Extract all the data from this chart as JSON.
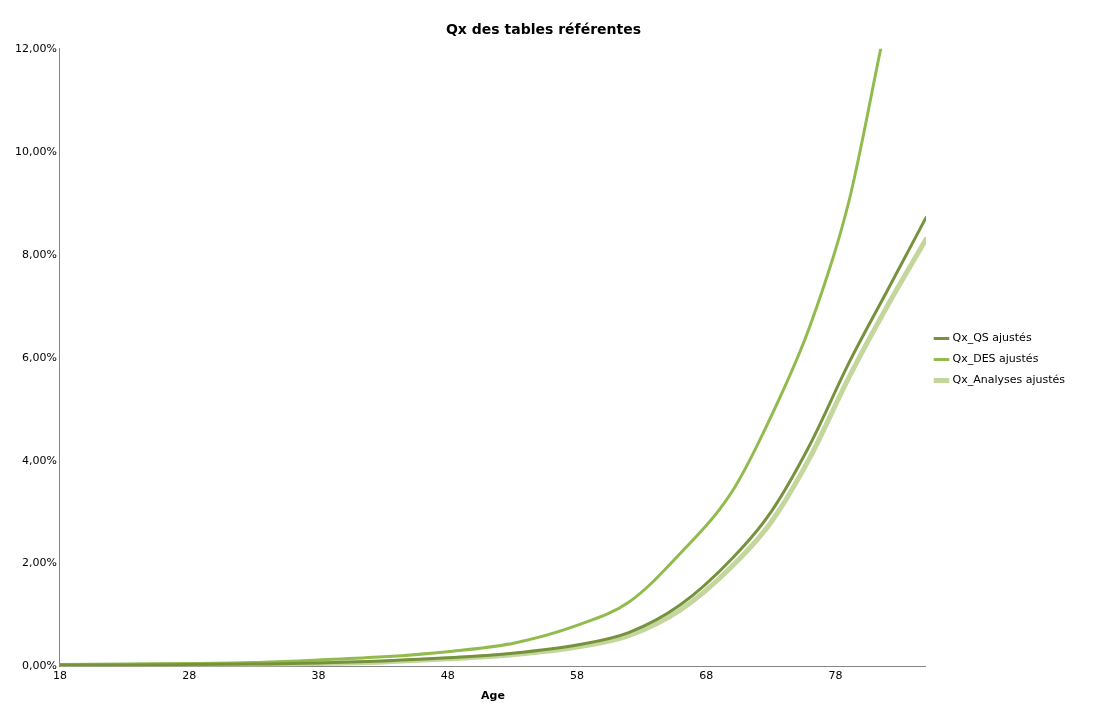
{
  "chart_data": {
    "type": "line",
    "title": "Qx des tables référentes",
    "xlabel": "Age",
    "x": [
      18,
      23,
      28,
      33,
      38,
      43,
      48,
      53,
      58,
      62,
      66,
      70,
      73,
      76,
      79,
      82,
      85
    ],
    "xlim": [
      18,
      85
    ],
    "xticks": [
      18,
      28,
      38,
      48,
      58,
      68,
      78
    ],
    "ylim": [
      0,
      12
    ],
    "yticks": [
      {
        "value": 0,
        "label": "0,00%"
      },
      {
        "value": 2,
        "label": "2,00%"
      },
      {
        "value": 4,
        "label": "4,00%"
      },
      {
        "value": 6,
        "label": "6,00%"
      },
      {
        "value": 8,
        "label": "8,00%"
      },
      {
        "value": 10,
        "label": "10,00%"
      },
      {
        "value": 12,
        "label": "12,00%"
      }
    ],
    "grid": false,
    "legend": "right",
    "marker": "none",
    "line_style": "solid",
    "series": [
      {
        "name": "Qx_QS ajustés",
        "color": "#76923c",
        "values": [
          0.03,
          0.03,
          0.04,
          0.05,
          0.07,
          0.11,
          0.17,
          0.26,
          0.42,
          0.66,
          1.2,
          2.1,
          3.0,
          4.3,
          5.88,
          7.3,
          8.72
        ]
      },
      {
        "name": "Qx_DES ajustés",
        "color": "#92bb4e",
        "x": [
          18,
          23,
          28,
          33,
          38,
          43,
          48,
          53,
          58,
          62,
          66,
          70,
          73,
          76,
          79,
          81.5
        ],
        "values": [
          0.04,
          0.05,
          0.06,
          0.08,
          0.13,
          0.19,
          0.29,
          0.45,
          0.8,
          1.25,
          2.2,
          3.4,
          4.85,
          6.6,
          9.0,
          12
        ]
      },
      {
        "name": "Qx_Analyses ajustés",
        "color": "#c3d69b",
        "values": [
          0.02,
          0.02,
          0.03,
          0.04,
          0.06,
          0.09,
          0.15,
          0.23,
          0.38,
          0.6,
          1.1,
          1.95,
          2.8,
          4.05,
          5.6,
          7.0,
          8.3
        ]
      }
    ]
  }
}
